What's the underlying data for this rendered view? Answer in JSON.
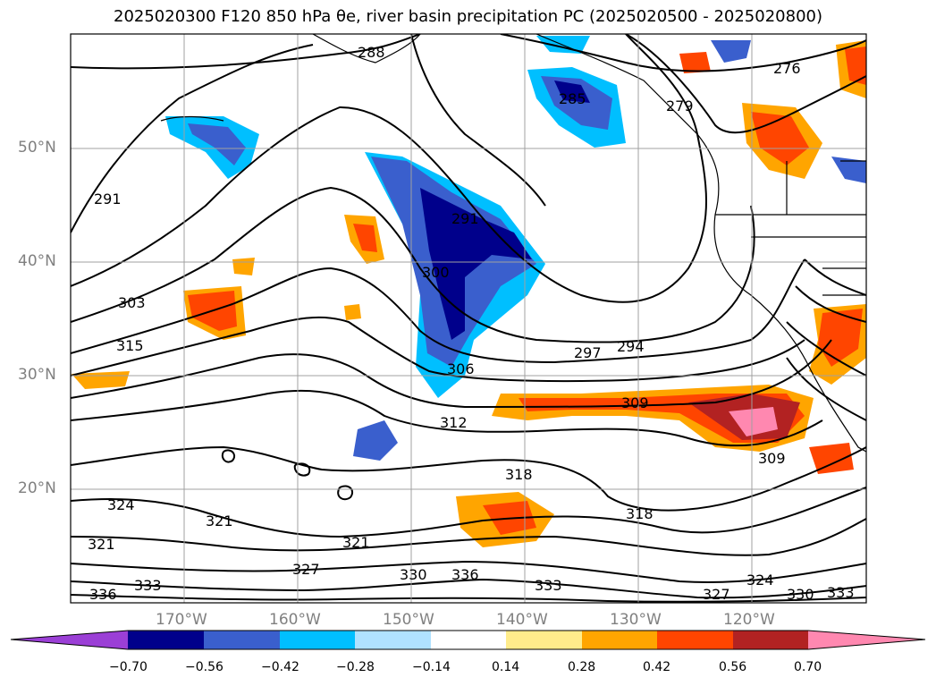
{
  "title": "2025020300 F120 850 hPa θe, river basin precipitation PC (2025020500 - 2025020800)",
  "lat_labels": [
    "50°N",
    "40°N",
    "30°N",
    "20°N"
  ],
  "lon_labels": [
    "170°W",
    "160°W",
    "150°W",
    "140°W",
    "130°W",
    "120°W"
  ],
  "colorbar": {
    "ticks": [
      "−0.70",
      "−0.56",
      "−0.42",
      "−0.28",
      "−0.14",
      "0.14",
      "0.28",
      "0.42",
      "0.56",
      "0.70"
    ],
    "colors": [
      "#9b3fd6",
      "#00008b",
      "#3a5fcd",
      "#00bfff",
      "#b0e2ff",
      "#ffffff",
      "#ffec8b",
      "#ffa500",
      "#ff4500",
      "#b22222",
      "#ff88b0"
    ]
  },
  "contour_labels": [
    "288",
    "285",
    "279",
    "276",
    "291",
    "300",
    "303",
    "315",
    "297",
    "294",
    "306",
    "309",
    "312",
    "318",
    "321",
    "324",
    "327",
    "330",
    "333",
    "336"
  ]
}
